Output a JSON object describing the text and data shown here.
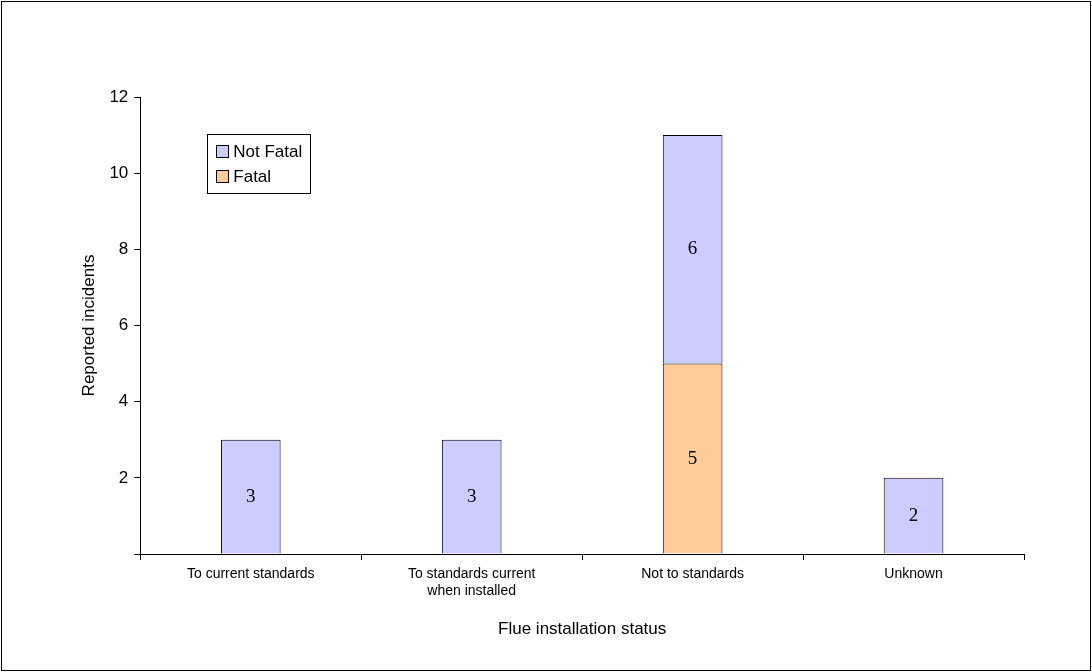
{
  "chart_data": {
    "type": "bar",
    "xlabel": "Flue installation status",
    "ylabel": "Reported incidents",
    "categories": [
      "To current standards",
      "To standards current when installed",
      "Not to standards",
      "Unknown"
    ],
    "stacked": true,
    "series": [
      {
        "name": "Fatal",
        "color": "#ffcc99",
        "values": [
          0,
          0,
          5,
          0
        ],
        "value_labels": [
          null,
          null,
          "5",
          null
        ]
      },
      {
        "name": "Not Fatal",
        "color": "#ccccff",
        "values": [
          3,
          3,
          6,
          2
        ],
        "value_labels": [
          "3",
          "3",
          "6",
          "2"
        ]
      }
    ],
    "ylim": [
      0,
      12
    ],
    "yticks": [
      {
        "value": 0,
        "label": null
      },
      2,
      4,
      6,
      8,
      10,
      12
    ],
    "grid": false,
    "legend": "top left"
  }
}
